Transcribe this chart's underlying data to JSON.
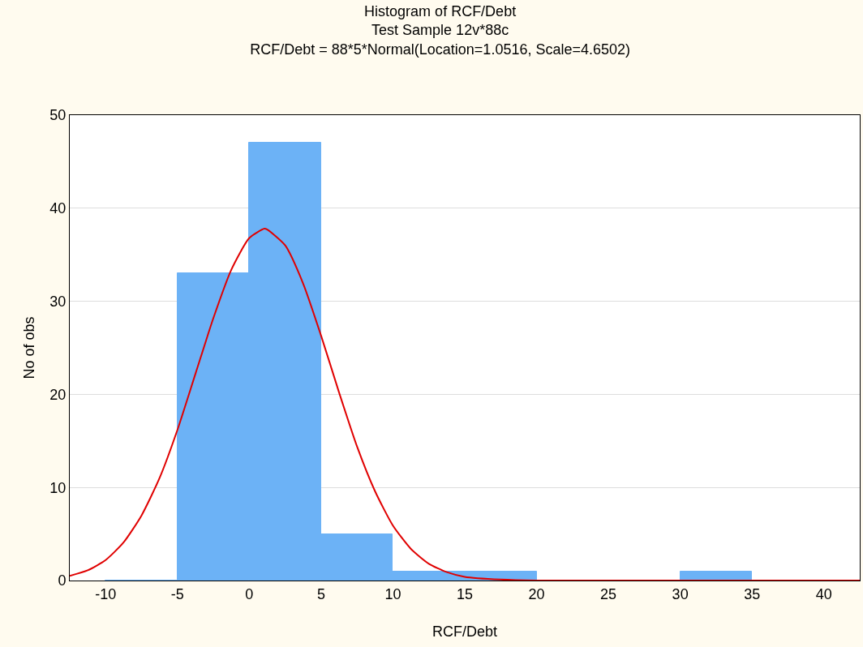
{
  "chart_data": {
    "type": "histogram",
    "title": "Histogram of RCF/Debt",
    "subtitle": "Test Sample 12v*88c",
    "annotations": [
      "RCF/Debt = 88*5*Normal(Location=1.0516, Scale=4.6502)"
    ],
    "xlabel": "RCF/Debt",
    "ylabel": "No of obs",
    "bins": [
      -10,
      -5,
      0,
      5,
      10,
      15,
      20,
      25,
      30,
      35
    ],
    "values": [
      0,
      33,
      47,
      5,
      1,
      1,
      0,
      0,
      1
    ],
    "color": "#6cb2f6",
    "series": [
      {
        "type": "line",
        "color": "#e00000",
        "x": [
          -12.5,
          -11.25,
          -10,
          -8.75,
          -7.5,
          -6.25,
          -5,
          -3.75,
          -2.5,
          -1.25,
          0,
          1.05,
          1.25,
          2.5,
          3.75,
          5,
          6.25,
          7.5,
          8.75,
          10,
          11.25,
          12.5,
          13.75,
          15,
          17.5,
          20,
          25,
          42.5
        ],
        "values": [
          0.5,
          1.1,
          2.2,
          4.1,
          7,
          11,
          16.2,
          22.2,
          28.2,
          33.4,
          36.8,
          37.8,
          37.7,
          36,
          31.9,
          26.3,
          20.2,
          14.4,
          9.6,
          5.9,
          3.4,
          1.8,
          0.9,
          0.4,
          0.1,
          0,
          0,
          0
        ]
      }
    ],
    "xlim": [
      -12.5,
      42.5
    ],
    "xticks": [
      -10,
      -5,
      0,
      5,
      10,
      15,
      20,
      25,
      30,
      35,
      40
    ],
    "ylim": [
      0,
      50
    ],
    "yticks": [
      0,
      10,
      20,
      30,
      40,
      50
    ],
    "grid": "y",
    "legend": false
  }
}
